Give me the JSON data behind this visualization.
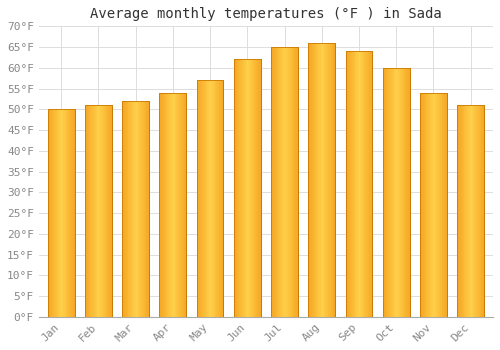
{
  "title": "Average monthly temperatures (°F ) in Sada",
  "months": [
    "Jan",
    "Feb",
    "Mar",
    "Apr",
    "May",
    "Jun",
    "Jul",
    "Aug",
    "Sep",
    "Oct",
    "Nov",
    "Dec"
  ],
  "values": [
    50,
    51,
    52,
    54,
    57,
    62,
    65,
    66,
    64,
    60,
    54,
    51
  ],
  "bar_color_center": "#FFD04A",
  "bar_color_edge": "#F5A623",
  "bar_edge_color": "#C87A00",
  "background_color": "#FFFFFF",
  "grid_color": "#DDDDDD",
  "ylim": [
    0,
    70
  ],
  "ytick_step": 5,
  "title_fontsize": 10,
  "tick_fontsize": 8,
  "font_family": "monospace",
  "tick_color": "#888888",
  "title_color": "#333333"
}
